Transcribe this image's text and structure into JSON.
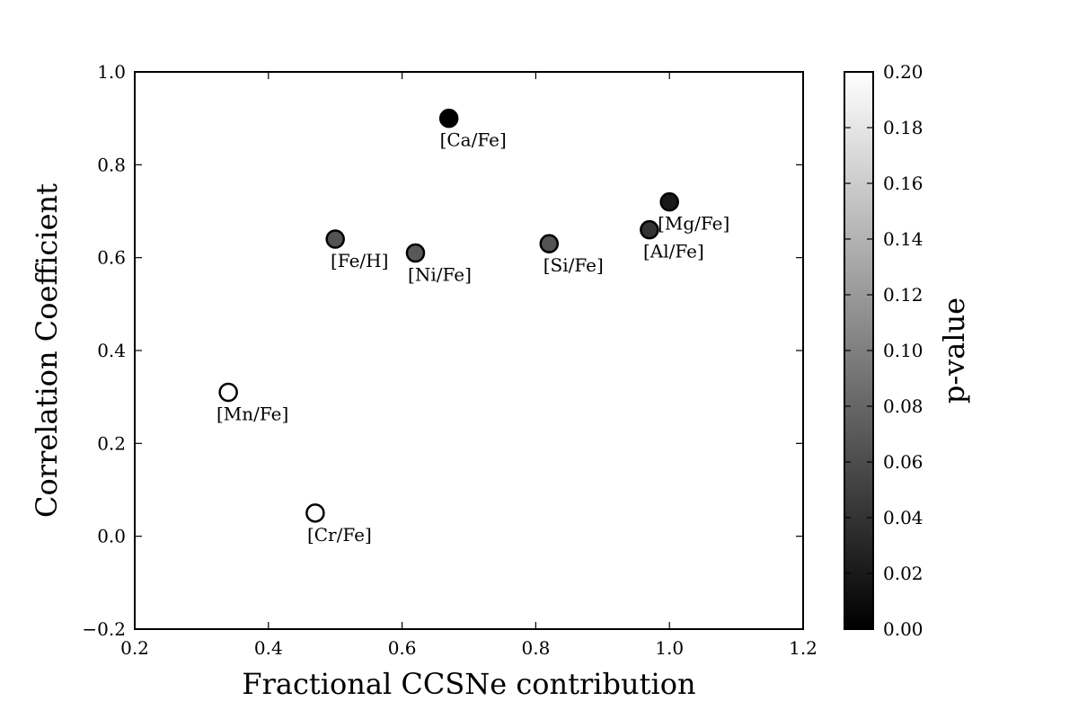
{
  "chart_data": {
    "type": "scatter",
    "title": "",
    "xlabel": "Fractional CCSNe contribution",
    "ylabel": "Correlation Coefficient",
    "xlim": [
      0.2,
      1.2
    ],
    "ylim": [
      -0.2,
      1.0
    ],
    "xticks": [
      0.2,
      0.4,
      0.6,
      0.8,
      1.0,
      1.2
    ],
    "xtick_labels": [
      "0.2",
      "0.4",
      "0.6",
      "0.8",
      "1.0",
      "1.2"
    ],
    "yticks": [
      -0.2,
      0.0,
      0.2,
      0.4,
      0.6,
      0.8,
      1.0
    ],
    "ytick_labels": [
      "−0.2",
      "0.0",
      "0.2",
      "0.4",
      "0.6",
      "0.8",
      "1.0"
    ],
    "grid": false,
    "colorbar": {
      "label": "p-value",
      "range": [
        0.0,
        0.2
      ],
      "colormap": "gray",
      "ticks": [
        0.0,
        0.02,
        0.04,
        0.06,
        0.08,
        0.1,
        0.12,
        0.14,
        0.16,
        0.18,
        0.2
      ],
      "tick_labels": [
        "0.00",
        "0.02",
        "0.04",
        "0.06",
        "0.08",
        "0.10",
        "0.12",
        "0.14",
        "0.16",
        "0.18",
        "0.20"
      ]
    },
    "points": [
      {
        "label": "[Ca/Fe]",
        "x": 0.67,
        "y": 0.9,
        "p_value": 0.0,
        "label_pos": "below"
      },
      {
        "label": "[Fe/H]",
        "x": 0.5,
        "y": 0.64,
        "p_value": 0.065,
        "label_pos": "below"
      },
      {
        "label": "[Ni/Fe]",
        "x": 0.62,
        "y": 0.61,
        "p_value": 0.07,
        "label_pos": "below"
      },
      {
        "label": "[Si/Fe]",
        "x": 0.82,
        "y": 0.63,
        "p_value": 0.065,
        "label_pos": "below"
      },
      {
        "label": "[Mg/Fe]",
        "x": 1.0,
        "y": 0.72,
        "p_value": 0.02,
        "label_pos": "below"
      },
      {
        "label": "[Al/Fe]",
        "x": 0.97,
        "y": 0.66,
        "p_value": 0.04,
        "label_pos": "below"
      },
      {
        "label": "[Mn/Fe]",
        "x": 0.34,
        "y": 0.31,
        "p_value": 0.2,
        "label_pos": "below"
      },
      {
        "label": "[Cr/Fe]",
        "x": 0.47,
        "y": 0.05,
        "p_value": 0.2,
        "label_pos": "below"
      }
    ]
  }
}
